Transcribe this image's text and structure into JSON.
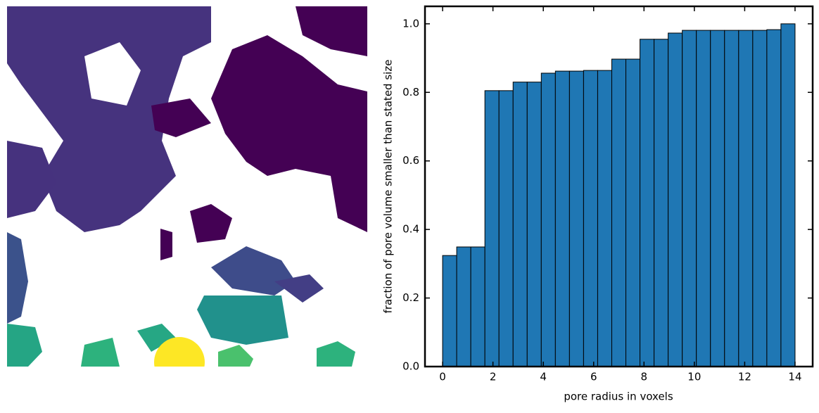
{
  "chart_data": {
    "type": "histogram",
    "xlabel": "pore radius in voxels",
    "ylabel": "fraction of pore volume smaller than stated size",
    "bins": [
      0,
      0.56,
      1.12,
      1.68,
      2.24,
      2.8,
      3.36,
      3.92,
      4.48,
      5.04,
      5.6,
      6.16,
      6.72,
      7.28,
      7.84,
      8.4,
      8.96,
      9.52,
      10.08,
      10.64,
      11.2,
      11.76,
      12.32,
      12.88,
      13.44,
      14
    ],
    "values": [
      0.324,
      0.349,
      0.349,
      0.805,
      0.805,
      0.83,
      0.83,
      0.856,
      0.862,
      0.862,
      0.864,
      0.864,
      0.897,
      0.897,
      0.955,
      0.955,
      0.973,
      0.981,
      0.981,
      0.981,
      0.981,
      0.981,
      0.981,
      0.983,
      1.0
    ],
    "color": "#1f77b4",
    "xlim": [
      -0.7,
      14.7
    ],
    "xticks": [
      0,
      2,
      4,
      6,
      8,
      10,
      12,
      14
    ],
    "ylim": [
      0,
      1.051
    ],
    "yticks": [
      {
        "value": 0,
        "label": "0.0"
      },
      {
        "value": 0.2,
        "label": "0.2"
      },
      {
        "value": 0.4,
        "label": "0.4"
      },
      {
        "value": 0.6,
        "label": "0.6"
      },
      {
        "value": 0.8,
        "label": "0.8"
      },
      {
        "value": 1,
        "label": "1.0"
      }
    ]
  }
}
